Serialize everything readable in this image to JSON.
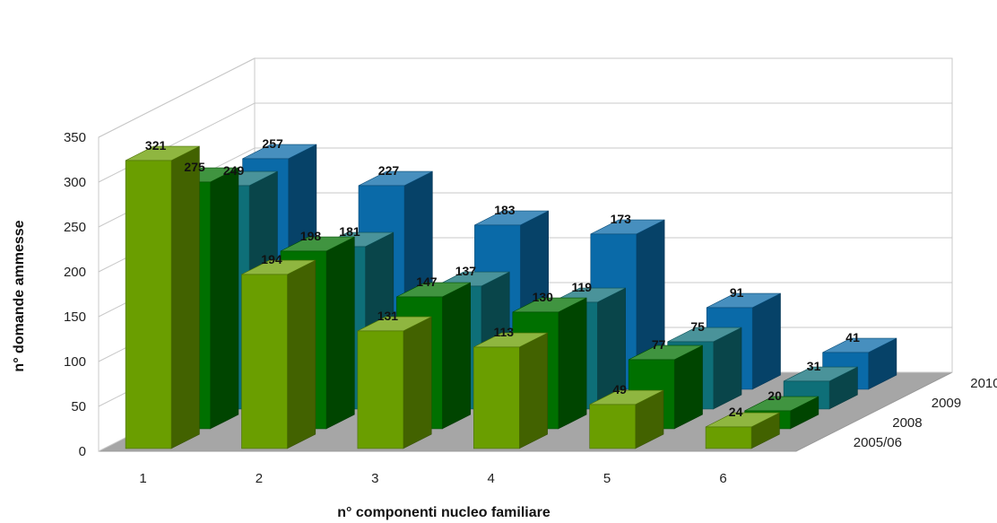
{
  "chart_data": {
    "type": "bar",
    "subtype": "3d-clustered-depth",
    "title": "",
    "xlabel": "n° componenti nucleo familiare",
    "ylabel": "n° domande ammesse",
    "categories": [
      "1",
      "2",
      "3",
      "4",
      "5",
      "6"
    ],
    "y_ticks": [
      "0",
      "50",
      "100",
      "150",
      "200",
      "250",
      "300",
      "350"
    ],
    "ylim": [
      0,
      350
    ],
    "grid": true,
    "series": [
      {
        "name": "2005/06",
        "values": [
          321,
          194,
          131,
          113,
          49,
          24
        ],
        "color": "#6a9e00"
      },
      {
        "name": "2008",
        "values": [
          275,
          198,
          147,
          130,
          77,
          20
        ],
        "color": "#007000"
      },
      {
        "name": "2009",
        "values": [
          249,
          181,
          137,
          119,
          75,
          31
        ],
        "color": "#0e6f78"
      },
      {
        "name": "2010",
        "values": [
          257,
          227,
          183,
          173,
          91,
          41
        ],
        "color": "#0a6aa8"
      }
    ]
  }
}
